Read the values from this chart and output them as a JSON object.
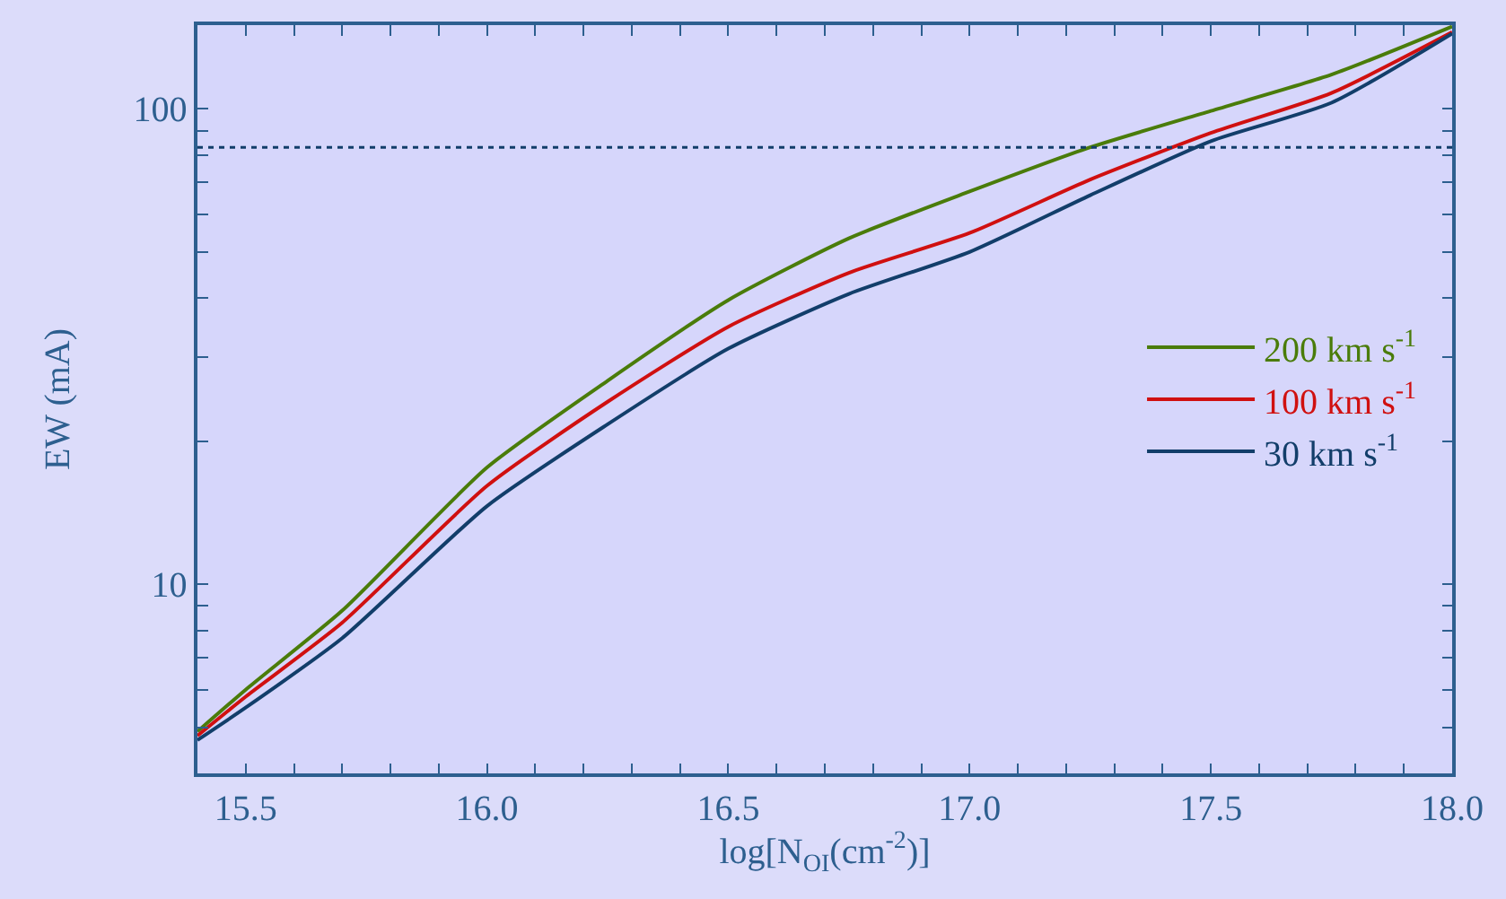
{
  "chart_data": {
    "type": "line",
    "xlabel": "log[N$_{OI}$(cm$^{-2}$)]",
    "ylabel": "EW (mA)",
    "x": [
      15.4,
      15.5,
      15.7,
      16.0,
      16.25,
      16.5,
      16.75,
      17.0,
      17.25,
      17.5,
      17.75,
      18.0
    ],
    "series": [
      {
        "name": "200 km s$^{-1}$",
        "color": "#4a7c0a",
        "values": [
          4.9,
          6.0,
          8.8,
          17.6,
          26.8,
          39.6,
          53.4,
          67,
          83,
          99,
          118,
          149
        ]
      },
      {
        "name": "100 km s$^{-1}$",
        "color": "#d01010",
        "values": [
          4.8,
          5.8,
          8.3,
          16.1,
          24.2,
          34.8,
          45.2,
          54.8,
          71,
          89,
          108,
          145
        ]
      },
      {
        "name": "30 km s$^{-1}$",
        "color": "#123e6a",
        "values": [
          4.7,
          5.5,
          7.7,
          14.6,
          21.7,
          31.3,
          40.8,
          50,
          65.8,
          85.5,
          103,
          144
        ]
      }
    ],
    "log": "y",
    "xlim": [
      15.4,
      18.0
    ],
    "ylim": [
      4,
      150
    ],
    "xticks": [
      15.5,
      {
        "value": 15.6,
        "label": null
      },
      {
        "value": 15.7,
        "label": null
      },
      {
        "value": 15.8,
        "label": null
      },
      {
        "value": 15.9,
        "label": null
      },
      {
        "value": 16.0,
        "label": "16.0"
      },
      {
        "value": 16.1,
        "label": null
      },
      {
        "value": 16.2,
        "label": null
      },
      {
        "value": 16.3,
        "label": null
      },
      {
        "value": 16.4,
        "label": null
      },
      16.5,
      {
        "value": 16.6,
        "label": null
      },
      {
        "value": 16.7,
        "label": null
      },
      {
        "value": 16.8,
        "label": null
      },
      {
        "value": 16.9,
        "label": null
      },
      {
        "value": 17.0,
        "label": "17.0"
      },
      {
        "value": 17.1,
        "label": null
      },
      {
        "value": 17.2,
        "label": null
      },
      {
        "value": 17.3,
        "label": null
      },
      {
        "value": 17.4,
        "label": null
      },
      17.5,
      {
        "value": 17.6,
        "label": null
      },
      {
        "value": 17.7,
        "label": null
      },
      {
        "value": 17.8,
        "label": null
      },
      {
        "value": 17.9,
        "label": null
      },
      {
        "value": 18.0,
        "label": "18.0"
      }
    ],
    "yticks": [
      {
        "value": 5,
        "label": null
      },
      {
        "value": 6,
        "label": null
      },
      {
        "value": 7,
        "label": null
      },
      {
        "value": 8,
        "label": null
      },
      {
        "value": 9,
        "label": null
      },
      10,
      {
        "value": 20,
        "label": null
      },
      {
        "value": 30,
        "label": null
      },
      {
        "value": 40,
        "label": null
      },
      {
        "value": 50,
        "label": null
      },
      {
        "value": 60,
        "label": null
      },
      {
        "value": 70,
        "label": null
      },
      {
        "value": 80,
        "label": null
      },
      {
        "value": 90,
        "label": null
      },
      100
    ],
    "ref_lines": [
      {
        "axis": "y",
        "value": 83,
        "label": null,
        "color": "#123e6a",
        "line_style": "dotted"
      }
    ],
    "grid": false,
    "legend": "right",
    "marker": "none",
    "line_style": "solid"
  }
}
